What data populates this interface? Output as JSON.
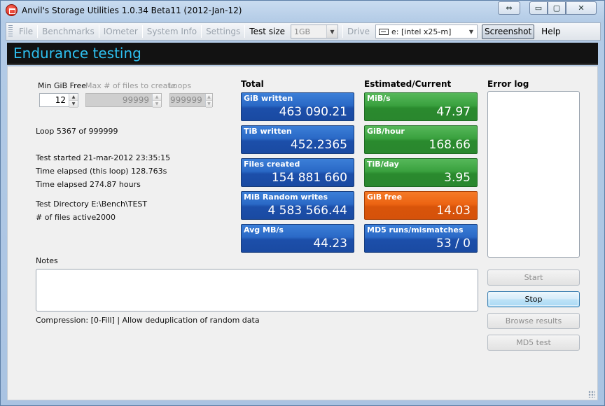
{
  "window": {
    "title": "Anvil's Storage Utilities 1.0.34 Beta11 (2012-Jan-12)",
    "controls": {
      "swap": "⇔",
      "minimize": "▭",
      "maximize": "▢",
      "close": "✕"
    }
  },
  "menu": {
    "items": [
      "File",
      "Benchmarks",
      "IOmeter",
      "System Info",
      "Settings"
    ],
    "test_size_label": "Test size",
    "test_size_value": "1GB",
    "drive_label": "Drive",
    "drive_value": "e: [intel x25-m]",
    "screenshot_label": "Screenshot",
    "help_label": "Help"
  },
  "header": {
    "title": "Endurance testing"
  },
  "settings": {
    "min_gib_free_label": "Min GiB Free",
    "min_gib_free_value": "12",
    "max_files_label": "Max # of files to create",
    "max_files_value": "99999",
    "loops_label": "Loops",
    "loops_value": "999999"
  },
  "info": {
    "loop": "Loop 5367 of 999999",
    "test_started": "Test started 21-mar-2012 23:35:15",
    "elapsed_loop": "Time elapsed (this loop) 128.763s",
    "elapsed_total": "Time elapsed 274.87 hours",
    "test_directory": "Test Directory E:\\Bench\\TEST",
    "files_active_label": "# of files active",
    "files_active_value": "2000"
  },
  "totals": {
    "heading": "Total",
    "tiles": [
      {
        "label": "GiB written",
        "value": "463 090.21"
      },
      {
        "label": "TiB written",
        "value": "452.2365"
      },
      {
        "label": "Files created",
        "value": "154 881 660"
      },
      {
        "label": "MiB Random writes",
        "value": "4 583 566.44"
      },
      {
        "label": "Avg MB/s",
        "value": "44.23"
      }
    ]
  },
  "estimated": {
    "heading": "Estimated/Current",
    "tiles": [
      {
        "label": "MiB/s",
        "value": "47.97",
        "color": "#3aa13f"
      },
      {
        "label": "GiB/hour",
        "value": "168.66",
        "color": "#3aa13f"
      },
      {
        "label": "TiB/day",
        "value": "3.95",
        "color": "#3aa13f"
      },
      {
        "label": "GiB free",
        "value": "14.03",
        "color": "#ec6412"
      },
      {
        "label": "MD5 runs/mismatches",
        "value": "53 / 0",
        "color": "#2a69c6"
      }
    ]
  },
  "error_log": {
    "heading": "Error log"
  },
  "notes": {
    "label": "Notes",
    "value": ""
  },
  "compression": "Compression: [0-Fill] | Allow deduplication of random data",
  "buttons": {
    "start": "Start",
    "stop": "Stop",
    "browse": "Browse results",
    "md5": "MD5 test"
  },
  "colors": {
    "header_bg": "#121212",
    "header_text": "#2ec0f0",
    "tile_blue": "#2a69c6",
    "tile_green": "#3aa13f",
    "tile_orange": "#ec6412"
  }
}
